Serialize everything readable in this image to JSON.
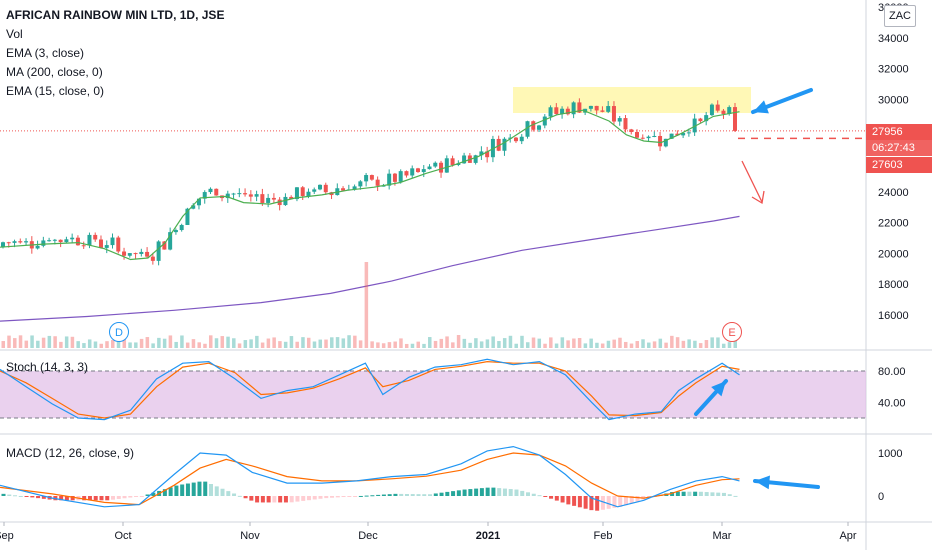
{
  "legend": {
    "title": "AFRICAN RAINBOW MIN LTD, 1D, JSE",
    "vol": "Vol",
    "ema3": "EMA (3, close)",
    "ma200": "MA (200, close, 0)",
    "ema15": "EMA (15, close, 0)"
  },
  "stoch_label": "Stoch (14, 3, 3)",
  "macd_label": "MACD (12, 26, close, 9)",
  "currency": "ZAC",
  "last_price": "27956",
  "countdown": "06:27:43",
  "target_price": "27603",
  "markers": {
    "dividend": "D",
    "earnings": "E"
  },
  "colors": {
    "up": "#26a69a",
    "down": "#ef5350",
    "ema_green": "#4caf50",
    "ma200": "#7e57c2",
    "stoch_k": "#2196f3",
    "stoch_d": "#ff6d00",
    "macd": "#2196f3",
    "signal": "#ff6d00",
    "arrow": "#2196f3",
    "highlight": "#fff59d",
    "stoch_band": "#e1bee7"
  },
  "chart_data": [
    {
      "type": "candlestick",
      "title": "AFRICAN RAINBOW MIN LTD, 1D, JSE",
      "x_ticks": [
        "Sep",
        "Oct",
        "Nov",
        "Dec",
        "2021",
        "Feb",
        "Mar",
        "Apr"
      ],
      "y_ticks": [
        16000,
        18000,
        20000,
        22000,
        24000,
        26000,
        28000,
        30000,
        32000,
        34000,
        36000
      ],
      "ylim": [
        14500,
        36200
      ],
      "last_price": 27956,
      "target_price": 27603,
      "series": [
        {
          "name": "EMA (15, close, 0)",
          "points": [
            [
              0,
              20400
            ],
            [
              0.05,
              20600
            ],
            [
              0.09,
              20700
            ],
            [
              0.12,
              20300
            ],
            [
              0.15,
              19600
            ],
            [
              0.17,
              19700
            ],
            [
              0.19,
              20700
            ],
            [
              0.21,
              22400
            ],
            [
              0.23,
              23600
            ],
            [
              0.26,
              23700
            ],
            [
              0.28,
              23300
            ],
            [
              0.31,
              23200
            ],
            [
              0.34,
              23600
            ],
            [
              0.37,
              23800
            ],
            [
              0.4,
              24100
            ],
            [
              0.43,
              24300
            ],
            [
              0.46,
              24600
            ],
            [
              0.49,
              25200
            ],
            [
              0.52,
              25700
            ],
            [
              0.55,
              26300
            ],
            [
              0.58,
              27200
            ],
            [
              0.61,
              28300
            ],
            [
              0.64,
              29000
            ],
            [
              0.67,
              29300
            ],
            [
              0.7,
              28600
            ],
            [
              0.72,
              27700
            ],
            [
              0.74,
              27300
            ],
            [
              0.76,
              27200
            ],
            [
              0.78,
              27700
            ],
            [
              0.8,
              28300
            ],
            [
              0.82,
              28900
            ],
            [
              0.85,
              29200
            ]
          ]
        },
        {
          "name": "MA (200, close, 0)",
          "points": [
            [
              0,
              15600
            ],
            [
              0.1,
              15900
            ],
            [
              0.2,
              16300
            ],
            [
              0.3,
              16800
            ],
            [
              0.38,
              17400
            ],
            [
              0.45,
              18200
            ],
            [
              0.52,
              19200
            ],
            [
              0.6,
              20200
            ],
            [
              0.68,
              20900
            ],
            [
              0.75,
              21500
            ],
            [
              0.82,
              22100
            ],
            [
              0.85,
              22400
            ]
          ]
        }
      ]
    },
    {
      "type": "bar",
      "title": "Vol",
      "spike_date": "Dec"
    },
    {
      "type": "line",
      "title": "Stoch (14, 3, 3)",
      "y_ticks": [
        40,
        80
      ],
      "ylim": [
        0,
        100
      ],
      "band": [
        20,
        80
      ],
      "series": [
        {
          "name": "%K",
          "points": [
            [
              0,
              82
            ],
            [
              0.03,
              60
            ],
            [
              0.06,
              38
            ],
            [
              0.09,
              20
            ],
            [
              0.12,
              18
            ],
            [
              0.15,
              30
            ],
            [
              0.18,
              70
            ],
            [
              0.21,
              90
            ],
            [
              0.24,
              92
            ],
            [
              0.27,
              70
            ],
            [
              0.3,
              45
            ],
            [
              0.33,
              55
            ],
            [
              0.36,
              60
            ],
            [
              0.39,
              75
            ],
            [
              0.42,
              90
            ],
            [
              0.44,
              50
            ],
            [
              0.47,
              72
            ],
            [
              0.5,
              85
            ],
            [
              0.53,
              88
            ],
            [
              0.56,
              95
            ],
            [
              0.59,
              88
            ],
            [
              0.62,
              92
            ],
            [
              0.65,
              75
            ],
            [
              0.68,
              40
            ],
            [
              0.7,
              18
            ],
            [
              0.73,
              25
            ],
            [
              0.76,
              28
            ],
            [
              0.78,
              55
            ],
            [
              0.8,
              70
            ],
            [
              0.83,
              90
            ],
            [
              0.85,
              75
            ]
          ]
        },
        {
          "name": "%D",
          "points": [
            [
              0,
              80
            ],
            [
              0.03,
              65
            ],
            [
              0.06,
              45
            ],
            [
              0.09,
              25
            ],
            [
              0.12,
              20
            ],
            [
              0.15,
              25
            ],
            [
              0.18,
              60
            ],
            [
              0.21,
              85
            ],
            [
              0.24,
              90
            ],
            [
              0.27,
              78
            ],
            [
              0.3,
              50
            ],
            [
              0.33,
              52
            ],
            [
              0.36,
              58
            ],
            [
              0.39,
              70
            ],
            [
              0.42,
              84
            ],
            [
              0.44,
              60
            ],
            [
              0.47,
              68
            ],
            [
              0.5,
              82
            ],
            [
              0.53,
              86
            ],
            [
              0.56,
              92
            ],
            [
              0.59,
              90
            ],
            [
              0.62,
              90
            ],
            [
              0.65,
              80
            ],
            [
              0.68,
              48
            ],
            [
              0.7,
              24
            ],
            [
              0.73,
              23
            ],
            [
              0.76,
              27
            ],
            [
              0.78,
              48
            ],
            [
              0.8,
              65
            ],
            [
              0.83,
              86
            ],
            [
              0.85,
              82
            ]
          ]
        }
      ]
    },
    {
      "type": "line",
      "title": "MACD (12, 26, close, 9)",
      "y_ticks": [
        0,
        1000
      ],
      "ylim": [
        -500,
        1200
      ],
      "series": [
        {
          "name": "MACD",
          "points": [
            [
              0,
              250
            ],
            [
              0.06,
              -50
            ],
            [
              0.12,
              -250
            ],
            [
              0.16,
              -200
            ],
            [
              0.2,
              500
            ],
            [
              0.23,
              1000
            ],
            [
              0.26,
              950
            ],
            [
              0.29,
              550
            ],
            [
              0.33,
              300
            ],
            [
              0.37,
              300
            ],
            [
              0.41,
              350
            ],
            [
              0.45,
              450
            ],
            [
              0.49,
              500
            ],
            [
              0.53,
              750
            ],
            [
              0.56,
              1050
            ],
            [
              0.59,
              1150
            ],
            [
              0.62,
              950
            ],
            [
              0.65,
              500
            ],
            [
              0.68,
              -50
            ],
            [
              0.71,
              -250
            ],
            [
              0.74,
              -100
            ],
            [
              0.77,
              150
            ],
            [
              0.8,
              350
            ],
            [
              0.83,
              450
            ],
            [
              0.85,
              350
            ]
          ]
        },
        {
          "name": "Signal",
          "points": [
            [
              0,
              200
            ],
            [
              0.06,
              50
            ],
            [
              0.12,
              -150
            ],
            [
              0.16,
              -200
            ],
            [
              0.2,
              250
            ],
            [
              0.23,
              650
            ],
            [
              0.26,
              850
            ],
            [
              0.29,
              700
            ],
            [
              0.33,
              450
            ],
            [
              0.37,
              350
            ],
            [
              0.41,
              350
            ],
            [
              0.45,
              400
            ],
            [
              0.49,
              460
            ],
            [
              0.53,
              600
            ],
            [
              0.56,
              850
            ],
            [
              0.59,
              1000
            ],
            [
              0.62,
              950
            ],
            [
              0.65,
              700
            ],
            [
              0.68,
              300
            ],
            [
              0.71,
              0
            ],
            [
              0.74,
              -50
            ],
            [
              0.77,
              50
            ],
            [
              0.8,
              250
            ],
            [
              0.83,
              380
            ],
            [
              0.85,
              400
            ]
          ]
        }
      ]
    }
  ]
}
